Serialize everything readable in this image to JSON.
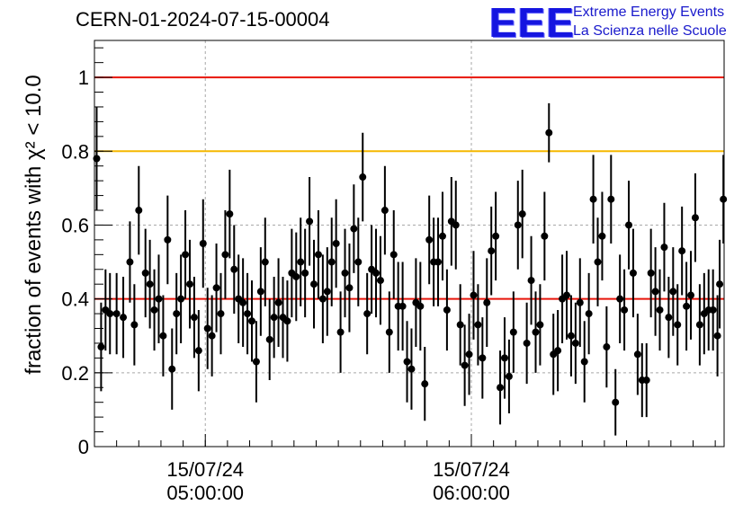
{
  "title": "CERN-01-2024-07-15-00004",
  "logo": {
    "letters": "EEE",
    "line1": "Extreme Energy Events",
    "line2": "La Scienza nelle Scuole"
  },
  "chart_data": {
    "type": "scatter",
    "ylabel": "fraction of events with χ² < 10.0",
    "ylim": [
      0,
      1.1
    ],
    "yticks": [
      "0",
      "0.2",
      "0.4",
      "0.6",
      "0.8",
      "1"
    ],
    "xlim": [
      "15/07/24 04:35:00",
      "15/07/24 06:57:00"
    ],
    "xticks": [
      {
        "date": "15/07/24",
        "time": "05:00:00",
        "t": "2024-07-15T05:00:00"
      },
      {
        "date": "15/07/24",
        "time": "06:00:00",
        "t": "2024-07-15T06:00:00"
      }
    ],
    "grid": true,
    "reference_lines": [
      {
        "y": 1.0,
        "color": "#e8140a"
      },
      {
        "y": 0.8,
        "color": "#f5b800"
      },
      {
        "y": 0.4,
        "color": "#e8140a"
      }
    ],
    "marker_color": "#000000",
    "points": [
      {
        "t": "04:35:30",
        "y": 0.78,
        "err": 0.14
      },
      {
        "t": "04:36:30",
        "y": 0.27,
        "err": 0.12
      },
      {
        "t": "04:37:30",
        "y": 0.37,
        "err": 0.11
      },
      {
        "t": "04:38:30",
        "y": 0.36,
        "err": 0.11
      },
      {
        "t": "04:40:00",
        "y": 0.36,
        "err": 0.11
      },
      {
        "t": "04:41:30",
        "y": 0.35,
        "err": 0.11
      },
      {
        "t": "04:43:00",
        "y": 0.5,
        "err": 0.11
      },
      {
        "t": "04:44:00",
        "y": 0.33,
        "err": 0.11
      },
      {
        "t": "04:45:00",
        "y": 0.64,
        "err": 0.12
      },
      {
        "t": "04:46:30",
        "y": 0.47,
        "err": 0.12
      },
      {
        "t": "04:47:30",
        "y": 0.44,
        "err": 0.12
      },
      {
        "t": "04:48:30",
        "y": 0.37,
        "err": 0.11
      },
      {
        "t": "04:49:30",
        "y": 0.4,
        "err": 0.12
      },
      {
        "t": "04:50:30",
        "y": 0.3,
        "err": 0.11
      },
      {
        "t": "04:51:30",
        "y": 0.56,
        "err": 0.12
      },
      {
        "t": "04:52:30",
        "y": 0.21,
        "err": 0.11
      },
      {
        "t": "04:53:30",
        "y": 0.36,
        "err": 0.11
      },
      {
        "t": "04:54:30",
        "y": 0.4,
        "err": 0.12
      },
      {
        "t": "04:55:30",
        "y": 0.52,
        "err": 0.12
      },
      {
        "t": "04:56:30",
        "y": 0.44,
        "err": 0.12
      },
      {
        "t": "04:57:30",
        "y": 0.35,
        "err": 0.11
      },
      {
        "t": "04:58:30",
        "y": 0.26,
        "err": 0.11
      },
      {
        "t": "04:59:30",
        "y": 0.55,
        "err": 0.12
      },
      {
        "t": "05:00:30",
        "y": 0.32,
        "err": 0.11
      },
      {
        "t": "05:01:30",
        "y": 0.3,
        "err": 0.11
      },
      {
        "t": "05:02:30",
        "y": 0.43,
        "err": 0.12
      },
      {
        "t": "05:03:30",
        "y": 0.36,
        "err": 0.11
      },
      {
        "t": "05:04:30",
        "y": 0.52,
        "err": 0.12
      },
      {
        "t": "05:05:30",
        "y": 0.63,
        "err": 0.12
      },
      {
        "t": "05:06:30",
        "y": 0.48,
        "err": 0.12
      },
      {
        "t": "05:07:30",
        "y": 0.4,
        "err": 0.12
      },
      {
        "t": "05:08:30",
        "y": 0.39,
        "err": 0.12
      },
      {
        "t": "05:09:30",
        "y": 0.36,
        "err": 0.11
      },
      {
        "t": "05:10:30",
        "y": 0.34,
        "err": 0.11
      },
      {
        "t": "05:11:30",
        "y": 0.23,
        "err": 0.11
      },
      {
        "t": "05:12:30",
        "y": 0.42,
        "err": 0.12
      },
      {
        "t": "05:13:30",
        "y": 0.5,
        "err": 0.12
      },
      {
        "t": "05:14:30",
        "y": 0.29,
        "err": 0.11
      },
      {
        "t": "05:15:30",
        "y": 0.35,
        "err": 0.11
      },
      {
        "t": "05:16:30",
        "y": 0.39,
        "err": 0.12
      },
      {
        "t": "05:17:30",
        "y": 0.35,
        "err": 0.11
      },
      {
        "t": "05:18:30",
        "y": 0.34,
        "err": 0.11
      },
      {
        "t": "05:19:30",
        "y": 0.47,
        "err": 0.12
      },
      {
        "t": "05:20:30",
        "y": 0.46,
        "err": 0.12
      },
      {
        "t": "05:21:30",
        "y": 0.5,
        "err": 0.12
      },
      {
        "t": "05:22:30",
        "y": 0.47,
        "err": 0.12
      },
      {
        "t": "05:23:30",
        "y": 0.61,
        "err": 0.12
      },
      {
        "t": "05:24:30",
        "y": 0.44,
        "err": 0.12
      },
      {
        "t": "05:25:30",
        "y": 0.52,
        "err": 0.12
      },
      {
        "t": "05:26:30",
        "y": 0.4,
        "err": 0.12
      },
      {
        "t": "05:27:30",
        "y": 0.42,
        "err": 0.12
      },
      {
        "t": "05:28:30",
        "y": 0.5,
        "err": 0.12
      },
      {
        "t": "05:29:30",
        "y": 0.55,
        "err": 0.12
      },
      {
        "t": "05:30:30",
        "y": 0.31,
        "err": 0.11
      },
      {
        "t": "05:31:30",
        "y": 0.47,
        "err": 0.12
      },
      {
        "t": "05:32:30",
        "y": 0.43,
        "err": 0.12
      },
      {
        "t": "05:33:30",
        "y": 0.59,
        "err": 0.12
      },
      {
        "t": "05:34:30",
        "y": 0.5,
        "err": 0.12
      },
      {
        "t": "05:35:30",
        "y": 0.73,
        "err": 0.12
      },
      {
        "t": "05:36:30",
        "y": 0.36,
        "err": 0.11
      },
      {
        "t": "05:37:30",
        "y": 0.48,
        "err": 0.12
      },
      {
        "t": "05:38:30",
        "y": 0.47,
        "err": 0.12
      },
      {
        "t": "05:39:30",
        "y": 0.45,
        "err": 0.12
      },
      {
        "t": "05:40:30",
        "y": 0.64,
        "err": 0.12
      },
      {
        "t": "05:41:30",
        "y": 0.31,
        "err": 0.11
      },
      {
        "t": "05:42:30",
        "y": 0.52,
        "err": 0.12
      },
      {
        "t": "05:43:30",
        "y": 0.38,
        "err": 0.12
      },
      {
        "t": "05:44:30",
        "y": 0.38,
        "err": 0.12
      },
      {
        "t": "05:45:30",
        "y": 0.23,
        "err": 0.11
      },
      {
        "t": "05:46:30",
        "y": 0.21,
        "err": 0.11
      },
      {
        "t": "05:47:30",
        "y": 0.39,
        "err": 0.12
      },
      {
        "t": "05:48:30",
        "y": 0.38,
        "err": 0.12
      },
      {
        "t": "05:49:30",
        "y": 0.17,
        "err": 0.1
      },
      {
        "t": "05:50:30",
        "y": 0.56,
        "err": 0.12
      },
      {
        "t": "05:51:30",
        "y": 0.5,
        "err": 0.12
      },
      {
        "t": "05:52:30",
        "y": 0.5,
        "err": 0.12
      },
      {
        "t": "05:53:30",
        "y": 0.57,
        "err": 0.12
      },
      {
        "t": "05:54:30",
        "y": 0.37,
        "err": 0.11
      },
      {
        "t": "05:55:30",
        "y": 0.61,
        "err": 0.12
      },
      {
        "t": "05:56:30",
        "y": 0.6,
        "err": 0.12
      },
      {
        "t": "05:57:30",
        "y": 0.33,
        "err": 0.11
      },
      {
        "t": "05:58:30",
        "y": 0.22,
        "err": 0.11
      },
      {
        "t": "05:59:30",
        "y": 0.25,
        "err": 0.11
      },
      {
        "t": "06:00:30",
        "y": 0.41,
        "err": 0.12
      },
      {
        "t": "06:01:30",
        "y": 0.33,
        "err": 0.11
      },
      {
        "t": "06:02:30",
        "y": 0.24,
        "err": 0.11
      },
      {
        "t": "06:03:30",
        "y": 0.39,
        "err": 0.12
      },
      {
        "t": "06:04:30",
        "y": 0.53,
        "err": 0.12
      },
      {
        "t": "06:05:30",
        "y": 0.57,
        "err": 0.12
      },
      {
        "t": "06:06:30",
        "y": 0.16,
        "err": 0.1
      },
      {
        "t": "06:07:30",
        "y": 0.24,
        "err": 0.11
      },
      {
        "t": "06:08:30",
        "y": 0.19,
        "err": 0.1
      },
      {
        "t": "06:09:30",
        "y": 0.31,
        "err": 0.11
      },
      {
        "t": "06:10:30",
        "y": 0.6,
        "err": 0.12
      },
      {
        "t": "06:11:30",
        "y": 0.63,
        "err": 0.12
      },
      {
        "t": "06:12:30",
        "y": 0.28,
        "err": 0.11
      },
      {
        "t": "06:13:30",
        "y": 0.45,
        "err": 0.12
      },
      {
        "t": "06:14:30",
        "y": 0.31,
        "err": 0.11
      },
      {
        "t": "06:15:30",
        "y": 0.33,
        "err": 0.11
      },
      {
        "t": "06:16:30",
        "y": 0.57,
        "err": 0.12
      },
      {
        "t": "06:17:30",
        "y": 0.85,
        "err": 0.08
      },
      {
        "t": "06:18:30",
        "y": 0.25,
        "err": 0.11
      },
      {
        "t": "06:19:30",
        "y": 0.26,
        "err": 0.11
      },
      {
        "t": "06:20:30",
        "y": 0.4,
        "err": 0.12
      },
      {
        "t": "06:21:30",
        "y": 0.41,
        "err": 0.12
      },
      {
        "t": "06:22:30",
        "y": 0.3,
        "err": 0.11
      },
      {
        "t": "06:23:30",
        "y": 0.28,
        "err": 0.11
      },
      {
        "t": "06:24:30",
        "y": 0.39,
        "err": 0.12
      },
      {
        "t": "06:25:30",
        "y": 0.23,
        "err": 0.11
      },
      {
        "t": "06:26:30",
        "y": 0.36,
        "err": 0.11
      },
      {
        "t": "06:27:30",
        "y": 0.67,
        "err": 0.12
      },
      {
        "t": "06:28:30",
        "y": 0.5,
        "err": 0.12
      },
      {
        "t": "06:29:30",
        "y": 0.57,
        "err": 0.12
      },
      {
        "t": "06:30:30",
        "y": 0.27,
        "err": 0.11
      },
      {
        "t": "06:31:30",
        "y": 0.67,
        "err": 0.12
      },
      {
        "t": "06:32:30",
        "y": 0.12,
        "err": 0.09
      },
      {
        "t": "06:33:30",
        "y": 0.4,
        "err": 0.12
      },
      {
        "t": "06:34:30",
        "y": 0.37,
        "err": 0.11
      },
      {
        "t": "06:35:30",
        "y": 0.6,
        "err": 0.12
      },
      {
        "t": "06:36:30",
        "y": 0.47,
        "err": 0.12
      },
      {
        "t": "06:37:30",
        "y": 0.25,
        "err": 0.11
      },
      {
        "t": "06:38:30",
        "y": 0.18,
        "err": 0.1
      },
      {
        "t": "06:39:30",
        "y": 0.18,
        "err": 0.1
      },
      {
        "t": "06:40:30",
        "y": 0.47,
        "err": 0.12
      },
      {
        "t": "06:41:30",
        "y": 0.42,
        "err": 0.12
      },
      {
        "t": "06:42:30",
        "y": 0.37,
        "err": 0.11
      },
      {
        "t": "06:43:30",
        "y": 0.54,
        "err": 0.12
      },
      {
        "t": "06:44:30",
        "y": 0.35,
        "err": 0.11
      },
      {
        "t": "06:45:30",
        "y": 0.42,
        "err": 0.12
      },
      {
        "t": "06:46:30",
        "y": 0.33,
        "err": 0.11
      },
      {
        "t": "06:47:30",
        "y": 0.53,
        "err": 0.12
      },
      {
        "t": "06:48:30",
        "y": 0.38,
        "err": 0.12
      },
      {
        "t": "06:49:30",
        "y": 0.41,
        "err": 0.12
      },
      {
        "t": "06:50:30",
        "y": 0.62,
        "err": 0.12
      },
      {
        "t": "06:51:30",
        "y": 0.33,
        "err": 0.11
      },
      {
        "t": "06:52:30",
        "y": 0.36,
        "err": 0.11
      },
      {
        "t": "06:53:30",
        "y": 0.37,
        "err": 0.11
      },
      {
        "t": "06:54:30",
        "y": 0.37,
        "err": 0.11
      },
      {
        "t": "06:55:30",
        "y": 0.3,
        "err": 0.11
      },
      {
        "t": "06:56:00",
        "y": 0.44,
        "err": 0.12
      },
      {
        "t": "06:56:50",
        "y": 0.67,
        "err": 0.12
      }
    ]
  }
}
